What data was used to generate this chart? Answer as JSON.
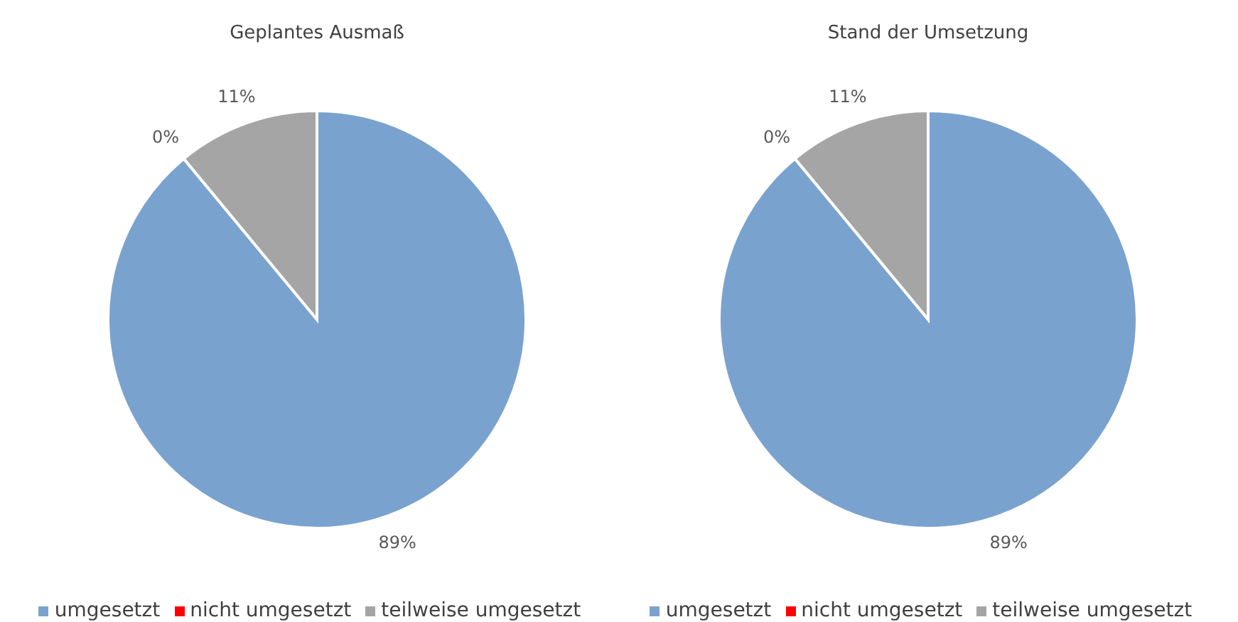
{
  "chart_data": [
    {
      "type": "pie",
      "title": "Geplantes Ausmaß",
      "categories": [
        "umgesetzt",
        "nicht umgesetzt",
        "teilweise umgesetzt"
      ],
      "values": [
        89,
        0,
        11
      ],
      "colors": [
        "#7aa2cf",
        "#ff0000",
        "#a5a5a5"
      ],
      "value_labels": [
        "89%",
        "0%",
        "11%"
      ],
      "legend": "bottom"
    },
    {
      "type": "pie",
      "title": "Stand der Umsetzung",
      "categories": [
        "umgesetzt",
        "nicht umgesetzt",
        "teilweise umgesetzt"
      ],
      "values": [
        89,
        0,
        11
      ],
      "colors": [
        "#7aa2cf",
        "#ff0000",
        "#a5a5a5"
      ],
      "value_labels": [
        "89%",
        "0%",
        "11%"
      ],
      "legend": "bottom"
    }
  ]
}
